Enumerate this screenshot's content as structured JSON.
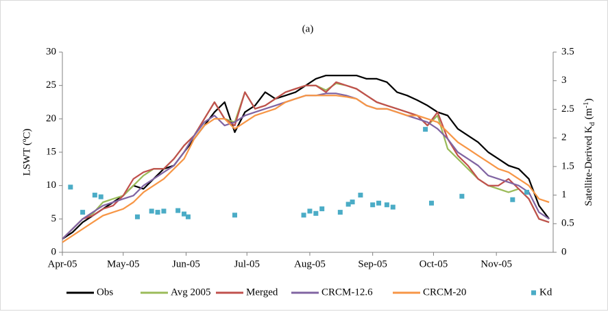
{
  "chart_data": {
    "type": "line",
    "title": "(a)",
    "y_label": "LSWT (ºC)",
    "y2_label": [
      "Satellite-Derived K",
      "d",
      " (m",
      "-1",
      ")"
    ],
    "x": [
      0,
      5,
      10,
      15,
      20,
      25,
      30,
      35,
      40,
      45,
      50,
      55,
      60,
      65,
      70,
      75,
      80,
      85,
      90,
      95,
      100,
      105,
      110,
      115,
      120,
      125,
      130,
      135,
      140,
      145,
      150,
      155,
      160,
      165,
      170,
      175,
      180,
      185,
      190,
      195,
      200,
      205,
      210,
      215,
      220,
      225,
      230,
      235,
      240
    ],
    "xlim": [
      0,
      242
    ],
    "xticks": [
      {
        "value": 0,
        "label": "Apr-05"
      },
      {
        "value": 30,
        "label": "May-05"
      },
      {
        "value": 61,
        "label": "Jun-05"
      },
      {
        "value": 91,
        "label": "Jul-05"
      },
      {
        "value": 122,
        "label": "Aug-05"
      },
      {
        "value": 153,
        "label": "Sep-05"
      },
      {
        "value": 183,
        "label": "Oct-05"
      },
      {
        "value": 214,
        "label": "Nov-05"
      }
    ],
    "ylim": [
      0,
      30
    ],
    "yticks": [
      0,
      5,
      10,
      15,
      20,
      25,
      30
    ],
    "y2lim": [
      0,
      3.5
    ],
    "y2ticks": [
      0,
      0.5,
      1,
      1.5,
      2,
      2.5,
      3,
      3.5
    ],
    "series": [
      {
        "name": "Obs",
        "color": "#000000",
        "values": [
          2,
          3,
          4.5,
          5.5,
          6.5,
          7.5,
          8.5,
          10,
          9.5,
          11,
          12.5,
          13,
          15,
          17,
          19,
          21,
          22.5,
          18,
          21,
          22,
          24,
          23,
          23.5,
          24,
          25,
          26,
          26.5,
          26.5,
          26.5,
          26.5,
          26,
          26,
          25.5,
          24,
          23.5,
          22.8,
          22,
          21,
          20.5,
          18.5,
          17.5,
          16.5,
          15,
          14,
          13,
          12.5,
          11,
          7,
          5
        ]
      },
      {
        "name": "Avg 2005",
        "color": "#9bbb59",
        "values": [
          2,
          3.5,
          5,
          5.8,
          7.5,
          8,
          8.5,
          10,
          11.5,
          12.5,
          12.5,
          14,
          16,
          17.5,
          20,
          22.5,
          20,
          19.5,
          24,
          21.5,
          22,
          23,
          24,
          24.5,
          25,
          25,
          24.3,
          25.3,
          25,
          24.5,
          23.5,
          22.5,
          22,
          21.5,
          21,
          20.5,
          19,
          20.5,
          15.5,
          14,
          12.5,
          11,
          10,
          9.5,
          9,
          9.5,
          8,
          5,
          4.5
        ]
      },
      {
        "name": "Merged",
        "color": "#c0504d",
        "values": [
          2,
          3.5,
          5,
          5.5,
          6.5,
          7,
          8.5,
          11,
          12,
          12.5,
          12.5,
          14,
          16,
          17.5,
          20,
          22.5,
          20,
          19,
          24,
          21.5,
          22,
          23,
          24,
          24.5,
          25,
          25,
          24,
          25.5,
          25,
          24.5,
          23.5,
          22.5,
          22,
          21.5,
          21,
          20.5,
          19,
          21,
          17,
          14.5,
          13,
          11,
          10,
          10,
          11,
          9.5,
          8,
          5,
          4.5
        ]
      },
      {
        "name": "CRCM-12.6",
        "color": "#8064a2",
        "values": [
          2,
          3.5,
          5,
          6,
          7,
          7.5,
          8,
          8.5,
          10,
          11,
          12,
          13,
          15,
          17.5,
          19.5,
          20.5,
          19,
          19.5,
          20.5,
          21,
          21.5,
          22,
          22.5,
          23,
          23.5,
          23.5,
          23.8,
          23.8,
          23.5,
          23,
          22,
          21.5,
          21.5,
          21,
          20.5,
          20,
          19.5,
          18.5,
          17,
          15,
          14,
          13,
          11.5,
          11,
          10.5,
          10,
          9,
          6,
          5
        ]
      },
      {
        "name": "CRCM-20",
        "color": "#f79646",
        "values": [
          1.5,
          2.5,
          3.5,
          4.5,
          5.5,
          6,
          6.5,
          7.5,
          9,
          10,
          11,
          12.5,
          14,
          17,
          19,
          20,
          20,
          18.5,
          19.5,
          20.5,
          21,
          21.5,
          22.5,
          23,
          23.5,
          23.5,
          23.5,
          23.5,
          23.3,
          23,
          22,
          21.5,
          21.5,
          21,
          20.5,
          20.5,
          20,
          19.5,
          18,
          16.5,
          15.5,
          14.5,
          13.5,
          12.5,
          12,
          11,
          10,
          8,
          7.5
        ]
      },
      {
        "name": "Kd",
        "color": "#4bacc6",
        "axis": "y2",
        "marker": "square",
        "x": [
          4,
          10,
          16,
          19,
          37,
          44,
          47,
          50,
          57,
          60,
          62,
          85,
          119,
          122,
          125,
          128,
          137,
          141,
          143,
          147,
          153,
          156,
          160,
          163,
          179,
          182,
          197,
          222,
          229
        ],
        "values": [
          1.14,
          0.7,
          1,
          0.97,
          0.62,
          0.72,
          0.7,
          0.72,
          0.73,
          0.67,
          0.62,
          0.65,
          0.65,
          0.72,
          0.68,
          0.76,
          0.7,
          0.84,
          0.88,
          1,
          0.83,
          0.86,
          0.83,
          0.79,
          2.15,
          0.86,
          0.98,
          0.92,
          1.05
        ]
      }
    ]
  }
}
